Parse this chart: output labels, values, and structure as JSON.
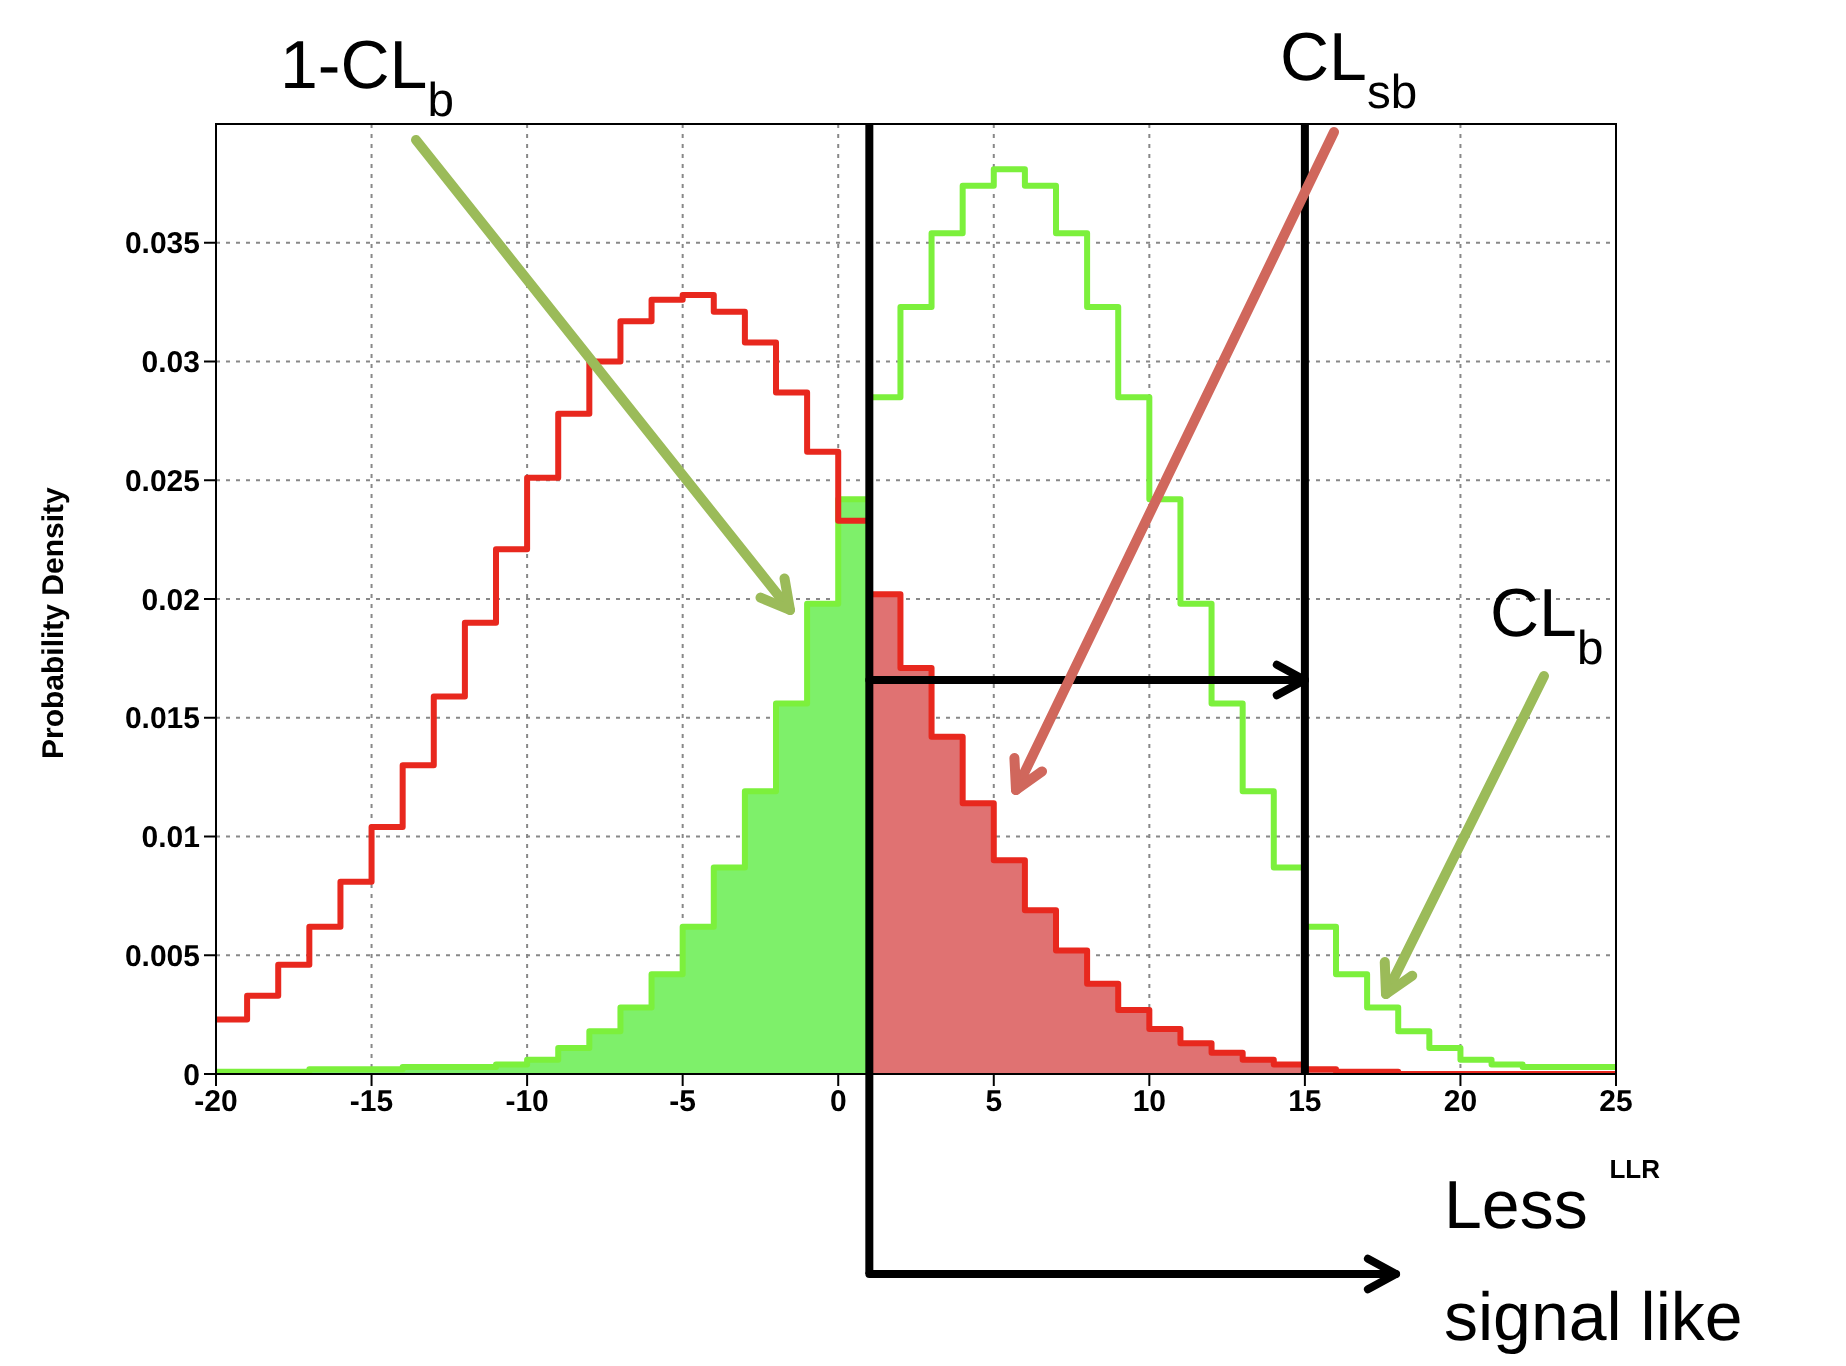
{
  "chart_data": {
    "type": "step",
    "xlabel": "LLR",
    "ylabel": "Probability Density",
    "x": [
      -20,
      -19,
      -18,
      -17,
      -16,
      -15,
      -14,
      -13,
      -12,
      -11,
      -10,
      -9,
      -8,
      -7,
      -6,
      -5,
      -4,
      -3,
      -2,
      -1,
      0,
      1,
      2,
      3,
      4,
      5,
      6,
      7,
      8,
      9,
      10,
      11,
      12,
      13,
      14,
      15,
      16,
      17,
      18,
      19,
      20,
      21,
      22,
      23,
      24,
      25
    ],
    "series": [
      {
        "type": "area",
        "color": "#7ef06a",
        "values": [
          0.0001,
          0.0001,
          0.0001,
          0.0002,
          0.0002,
          0.0002,
          0.0003,
          0.0003,
          0.0003,
          0.0004,
          0.0006,
          0.0011,
          0.0018,
          0.0028,
          0.0042,
          0.0062,
          0.0087,
          0.0119,
          0.0156,
          0.0198,
          0.0242,
          0.0285,
          null,
          null,
          null,
          null,
          null,
          null,
          null,
          null,
          null,
          null,
          null,
          null,
          null,
          null,
          null,
          null,
          null,
          null,
          null,
          null,
          null,
          null,
          null,
          null
        ]
      },
      {
        "type": "area",
        "color": "#e07272",
        "values": [
          null,
          null,
          null,
          null,
          null,
          null,
          null,
          null,
          null,
          null,
          null,
          null,
          null,
          null,
          null,
          null,
          null,
          null,
          null,
          null,
          null,
          0.0202,
          0.0171,
          0.0142,
          0.0114,
          0.009,
          0.0069,
          0.0052,
          0.0038,
          0.0027,
          0.0019,
          0.0013,
          0.0009,
          0.0006,
          0.0004,
          0.0002,
          0.0001,
          0.0001,
          0,
          0,
          0,
          0,
          0,
          0,
          0,
          0
        ]
      },
      {
        "type": "step",
        "color": "#7cf03c",
        "values": [
          0.0001,
          0.0001,
          0.0001,
          0.0002,
          0.0002,
          0.0002,
          0.0003,
          0.0003,
          0.0003,
          0.0004,
          0.0006,
          0.0011,
          0.0018,
          0.0028,
          0.0042,
          0.0062,
          0.0087,
          0.0119,
          0.0156,
          0.0198,
          0.0242,
          0.0285,
          0.0323,
          0.0354,
          0.0374,
          0.0381,
          0.0374,
          0.0354,
          0.0323,
          0.0285,
          0.0242,
          0.0198,
          0.0156,
          0.0119,
          0.0087,
          0.0062,
          0.0042,
          0.0028,
          0.0018,
          0.0011,
          0.0006,
          0.0004,
          0.0003,
          0.0003,
          0.0003,
          0.0003
        ]
      },
      {
        "type": "step",
        "color": "#e8281e",
        "values": [
          0.0023,
          0.0033,
          0.0046,
          0.0062,
          0.0081,
          0.0104,
          0.013,
          0.0159,
          0.019,
          0.0221,
          0.0251,
          0.0278,
          0.03,
          0.0317,
          0.0326,
          0.0328,
          0.0321,
          0.0308,
          0.0287,
          0.0262,
          0.0233,
          0.0202,
          0.0171,
          0.0142,
          0.0114,
          0.009,
          0.0069,
          0.0052,
          0.0038,
          0.0027,
          0.0019,
          0.0013,
          0.0009,
          0.0006,
          0.0004,
          0.0002,
          0.0001,
          0.0001,
          0,
          0,
          0,
          0,
          0,
          0,
          0,
          0
        ]
      }
    ],
    "xlim": [
      -20,
      25
    ],
    "xticks": [
      -20,
      -15,
      -10,
      -5,
      0,
      5,
      10,
      15,
      20,
      25
    ],
    "ylim": [
      0,
      0.04
    ],
    "yticks": [
      0,
      0.005,
      0.01,
      0.015,
      0.02,
      0.025,
      0.03,
      0.035
    ],
    "grid": true,
    "ref_lines": [
      {
        "axis": "x",
        "value": 1,
        "color": "#000000"
      },
      {
        "axis": "x",
        "value": 15,
        "color": "#000000"
      }
    ],
    "annotations": [
      "1-CL$_{b}$",
      "CL$_{sb}$",
      "CL$_{b}$",
      "Less signal like"
    ]
  }
}
